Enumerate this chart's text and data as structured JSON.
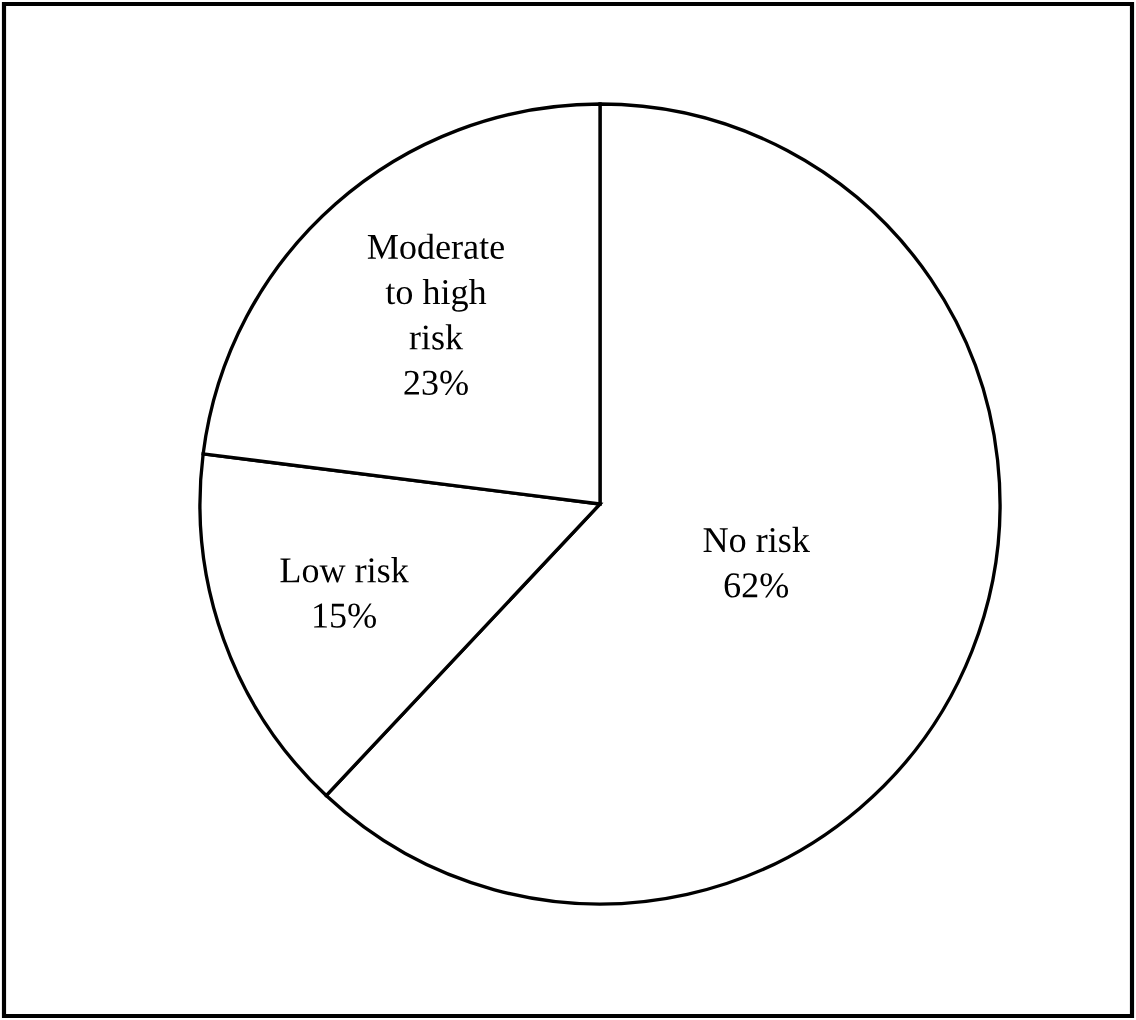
{
  "chart_data": {
    "type": "pie",
    "categories": [
      "No risk",
      "Low risk",
      "Moderate\nto high\nrisk"
    ],
    "values": [
      62,
      15,
      23
    ],
    "value_labels": [
      "62%",
      "15%",
      "23%"
    ],
    "colors": [
      "#ffffff",
      "#ffffff",
      "#ffffff"
    ]
  }
}
